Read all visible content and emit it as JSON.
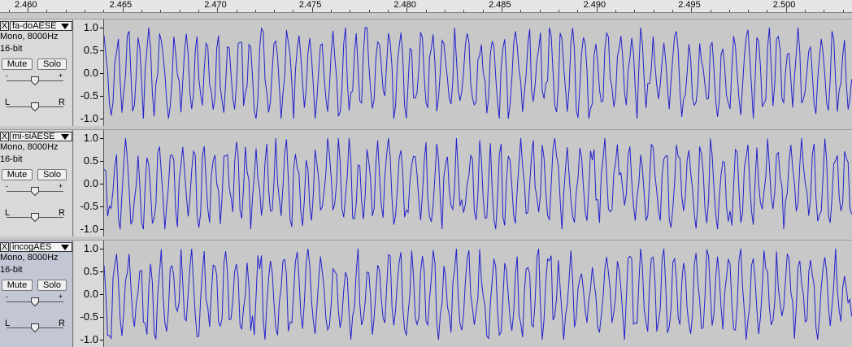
{
  "ruler": {
    "labels": [
      "2.460",
      "2.465",
      "2.470",
      "2.475",
      "2.480",
      "2.485",
      "2.490",
      "2.495",
      "2.500"
    ]
  },
  "scale_labels": [
    "1.0",
    "0.5",
    "0.0",
    "-0.5",
    "-1.0"
  ],
  "tracks": [
    {
      "name": "fa-doAESE",
      "info_line1": "Mono, 8000Hz",
      "info_line2": "16-bit",
      "mute_label": "Mute",
      "solo_label": "Solo",
      "gain_minus": "-",
      "gain_plus": "+",
      "pan_left": "L",
      "pan_right": "R",
      "close_glyph": "X",
      "selected": false
    },
    {
      "name": "mi-siAESE",
      "info_line1": "Mono, 8000Hz",
      "info_line2": "16-bit",
      "mute_label": "Mute",
      "solo_label": "Solo",
      "gain_minus": "-",
      "gain_plus": "+",
      "pan_left": "L",
      "pan_right": "R",
      "close_glyph": "X",
      "selected": false
    },
    {
      "name": "incogAES",
      "info_line1": "Mono, 8000Hz",
      "info_line2": "16-bit",
      "mute_label": "Mute",
      "solo_label": "Solo",
      "gain_minus": "-",
      "gain_plus": "+",
      "pan_left": "L",
      "pan_right": "R",
      "close_glyph": "X",
      "selected": true
    }
  ],
  "colors": {
    "waveform": "#2222cc",
    "wave_bg": "#c8c8c8",
    "panel_bg": "#d9d9d9",
    "selected_panel_bg": "#c3c6d4"
  }
}
